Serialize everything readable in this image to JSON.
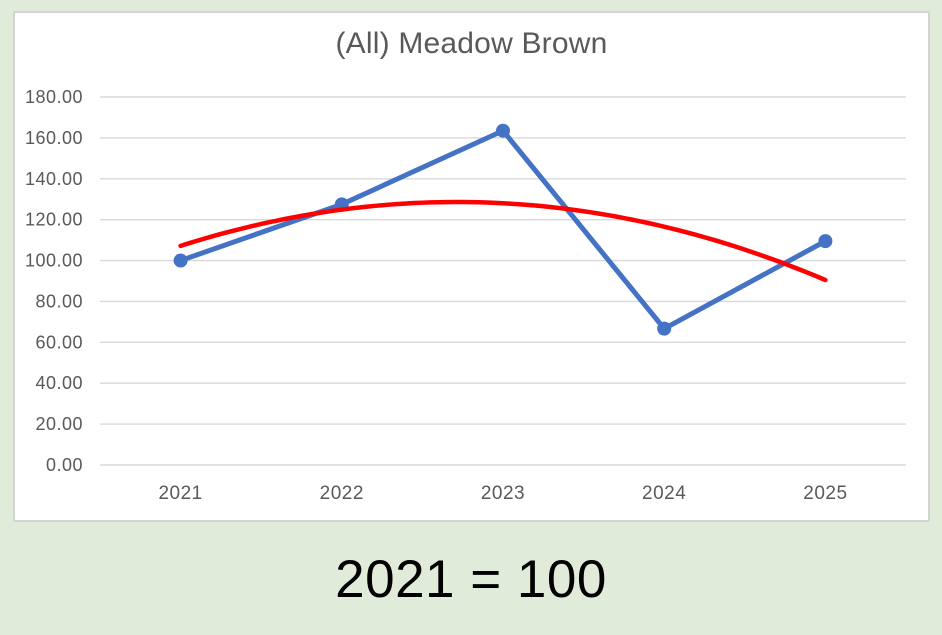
{
  "caption": {
    "text": "2021 = 100"
  },
  "chart_data": {
    "type": "line",
    "title": "(All) Meadow Brown",
    "x": [
      "2021",
      "2022",
      "2023",
      "2024",
      "2025"
    ],
    "series": [
      {
        "values": [
          100.0,
          127.5,
          163.5,
          66.7,
          109.5
        ],
        "color": "#4472C4",
        "markers": true
      }
    ],
    "trendline": {
      "type": "polynomial",
      "order": 2,
      "color": "#FF0000",
      "approx_values_at_x": [
        107.2,
        124.9,
        128.4,
        116.3,
        90.5
      ]
    },
    "xlabel": "",
    "ylabel": "",
    "ylim": [
      0,
      180
    ],
    "ytick_step": 20,
    "ytick_decimals": 2,
    "grid": true,
    "legend": "none",
    "colors": {
      "page_bg": "#E0ECD9",
      "chart_bg": "#FFFFFF",
      "chart_border": "#D3D3D3",
      "gridline": "#D9D9D9",
      "axis_text": "#595959",
      "title_text": "#595959",
      "caption_text": "#000000"
    }
  }
}
